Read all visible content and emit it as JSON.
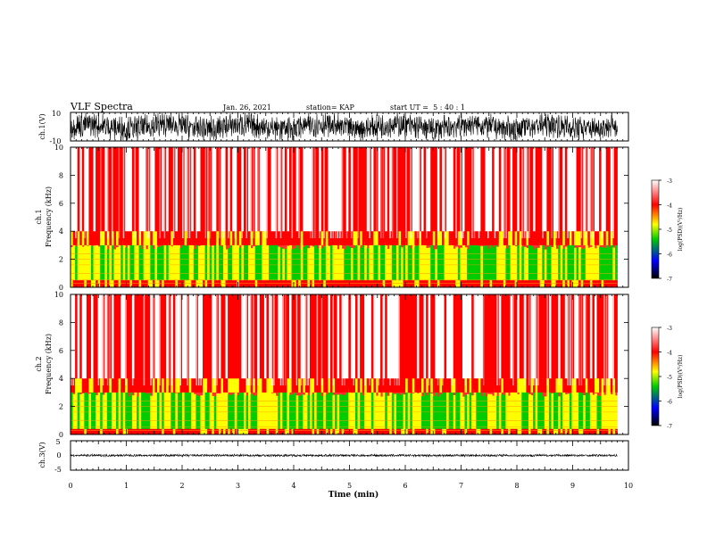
{
  "header": {
    "title": "VLF Spectra",
    "date": "Jan. 26, 2021",
    "station": "station= KAP",
    "start": "start UT =  5 : 40 : 1"
  },
  "chart_data": [
    {
      "type": "line",
      "panel": "ch1-waveform",
      "ylabel": "ch.1(V)",
      "ylim": [
        -10,
        10
      ],
      "ytick_labels": [
        "10",
        "-10"
      ],
      "xlim": [
        0,
        10
      ],
      "x_extent": [
        0,
        9.8
      ],
      "signal": "dense noisy waveform spanning roughly -10 to 10 V across the full record"
    },
    {
      "type": "heatmap",
      "panel": "ch1-spectrogram",
      "ylabel": "ch.1\nFrequency (kHz)",
      "ylim": [
        0,
        10
      ],
      "ytick_labels": [
        "0",
        "2",
        "4",
        "6",
        "8",
        "10"
      ],
      "xlim": [
        0,
        10
      ],
      "x_extent": [
        0,
        9.8
      ],
      "bands": [
        {
          "f_from": 0,
          "f_to": 0.5,
          "level": -4
        },
        {
          "f_from": 0.5,
          "f_to": 3.0,
          "level": -5
        },
        {
          "f_from": 3.0,
          "f_to": 4.0,
          "level": -4
        },
        {
          "f_from": 4.0,
          "f_to": 10.0,
          "level": -3.5
        }
      ],
      "colorbar": {
        "label": "log(PSD)(V²/Hz)",
        "range": [
          -7,
          -3
        ],
        "ticks": [
          "-3",
          "-4",
          "-5",
          "-6",
          "-7"
        ],
        "colors": [
          "#ffffff",
          "#ff0000",
          "#ffff00",
          "#00cc00",
          "#0000ff",
          "#000000"
        ]
      }
    },
    {
      "type": "heatmap",
      "panel": "ch2-spectrogram",
      "ylabel": "ch.2\nFrequency (kHz)",
      "ylim": [
        0,
        10
      ],
      "ytick_labels": [
        "0",
        "2",
        "4",
        "6",
        "8",
        "10"
      ],
      "xlim": [
        0,
        10
      ],
      "x_extent": [
        0,
        9.8
      ],
      "bands": [
        {
          "f_from": 0,
          "f_to": 0.4,
          "level": -4
        },
        {
          "f_from": 0.4,
          "f_to": 3.0,
          "level": -5
        },
        {
          "f_from": 3.0,
          "f_to": 4.0,
          "level": -4
        },
        {
          "f_from": 4.0,
          "f_to": 10.0,
          "level": -3.5
        }
      ],
      "colorbar": {
        "label": "log(PSD)(V²/Hz)",
        "range": [
          -7,
          -3
        ],
        "ticks": [
          "-3",
          "-4",
          "-5",
          "-6",
          "-7"
        ],
        "colors": [
          "#ffffff",
          "#ff0000",
          "#ffff00",
          "#00cc00",
          "#0000ff",
          "#000000"
        ]
      }
    },
    {
      "type": "line",
      "panel": "ch3-waveform",
      "ylabel": "ch.3(V)",
      "ylim": [
        -5,
        5
      ],
      "ytick_labels": [
        "5",
        "0",
        "-5"
      ],
      "xlim": [
        0,
        10
      ],
      "x_extent": [
        0,
        9.8
      ],
      "signal": "narrow band around 0 V, amplitude about 0.5 V"
    }
  ],
  "xaxis": {
    "label": "Time (min)",
    "ticks": [
      "0",
      "1",
      "2",
      "3",
      "4",
      "5",
      "6",
      "7",
      "8",
      "9",
      "10"
    ],
    "range": [
      0,
      10
    ]
  }
}
